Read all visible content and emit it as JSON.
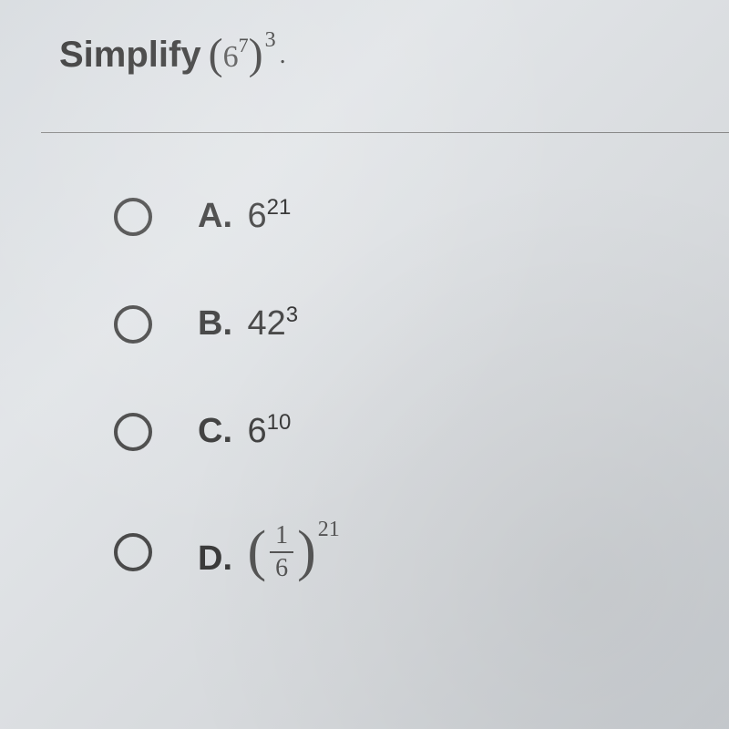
{
  "question": {
    "prefix": "Simplify",
    "expression": {
      "paren_open": "(",
      "base": "6",
      "inner_exp": "7",
      "paren_close": ")",
      "outer_exp": "3",
      "suffix": "."
    }
  },
  "options": [
    {
      "letter": "A.",
      "base": "6",
      "exponent": "21",
      "type": "power"
    },
    {
      "letter": "B.",
      "base": "42",
      "exponent": "3",
      "type": "power"
    },
    {
      "letter": "C.",
      "base": "6",
      "exponent": "10",
      "type": "power"
    },
    {
      "letter": "D.",
      "numerator": "1",
      "denominator": "6",
      "exponent": "21",
      "type": "fraction_power"
    }
  ],
  "styling": {
    "background_color": "#dde0e3",
    "text_color": "#3a3a3a",
    "radio_border_color": "#4a4a4a",
    "divider_color": "#888",
    "question_fontsize": 40,
    "option_fontsize": 38,
    "exponent_fontsize": 24,
    "radio_size": 42,
    "option_gap": 75
  }
}
